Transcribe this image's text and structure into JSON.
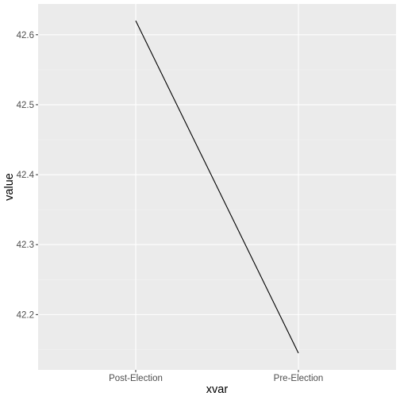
{
  "chart_data": {
    "type": "line",
    "title": "",
    "xlabel": "xvar",
    "ylabel": "value",
    "categories": [
      "Post-Election",
      "Pre-Election"
    ],
    "series": [
      {
        "values": [
          42.62,
          42.145
        ]
      }
    ],
    "yticks": [
      42.2,
      42.3,
      42.4,
      42.5,
      42.6
    ],
    "ylim": [
      42.121,
      42.644
    ],
    "grid": true,
    "legend": "none"
  },
  "colors": {
    "panel_background": "#EBEBEB",
    "grid_major": "#FFFFFF",
    "grid_minor": "#F4F4F4",
    "line": "#000000",
    "axis_text": "#4D4D4D",
    "axis_title": "#000000"
  }
}
